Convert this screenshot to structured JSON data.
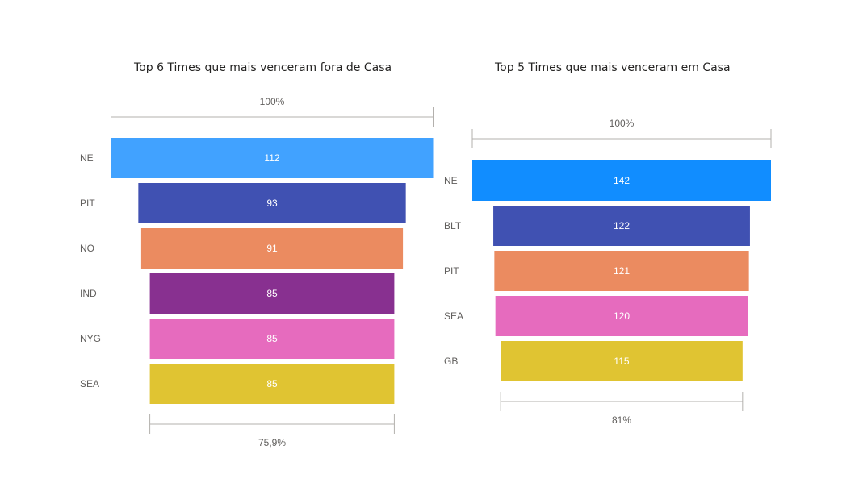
{
  "chart_data": [
    {
      "type": "funnel",
      "title": "Top 6 Times que mais venceram fora de Casa",
      "categories": [
        "NE",
        "PIT",
        "NO",
        "IND",
        "NYG",
        "SEA"
      ],
      "values": [
        112,
        93,
        91,
        85,
        85,
        85
      ],
      "colors": [
        "#41a2ff",
        "#4051b2",
        "#eb8b60",
        "#883090",
        "#e66bbe",
        "#e0c432"
      ],
      "top_label": "100%",
      "bottom_label": "75,9%"
    },
    {
      "type": "funnel",
      "title": "Top 5 Times que mais venceram em Casa",
      "categories": [
        "NE",
        "BLT",
        "PIT",
        "SEA",
        "GB"
      ],
      "values": [
        142,
        122,
        121,
        120,
        115
      ],
      "colors": [
        "#118dff",
        "#4051b2",
        "#eb8b60",
        "#e66bbe",
        "#e0c432"
      ],
      "top_label": "100%",
      "bottom_label": "81%"
    }
  ]
}
